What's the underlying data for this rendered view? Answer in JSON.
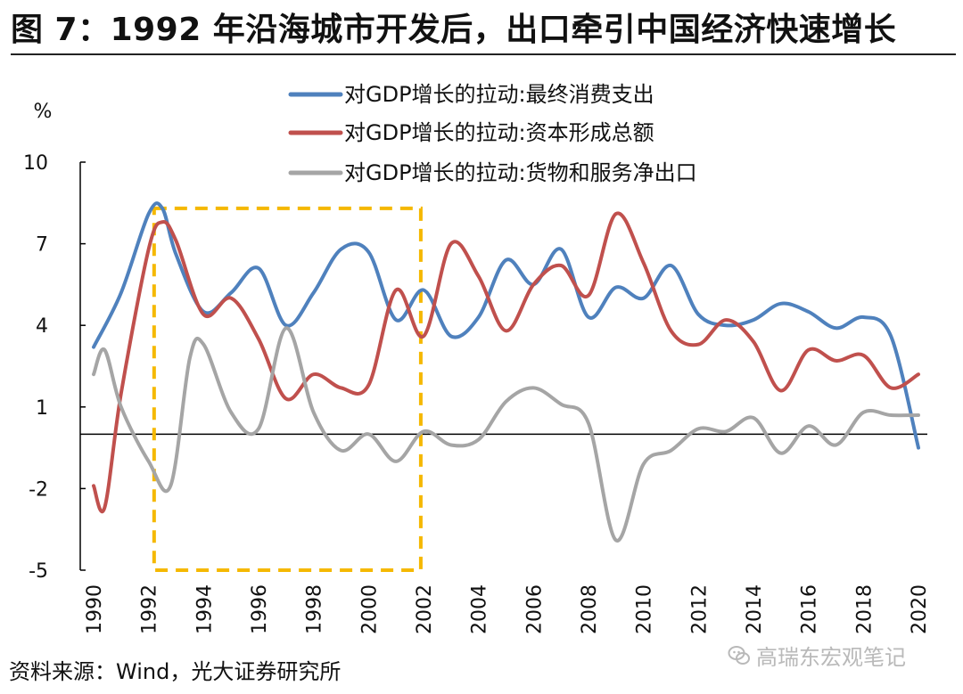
{
  "title": "图 7：1992 年沿海城市开发后，出口牵引中国经济快速增长",
  "source": "资料来源：Wind，光大证券研究所",
  "watermark": "高瑞东宏观笔记",
  "chart_data": {
    "type": "line",
    "ylabel": "%",
    "ylim": [
      -5,
      10
    ],
    "yticks": [
      -5,
      -2,
      1,
      4,
      7,
      10
    ],
    "xlim": [
      1990,
      2020
    ],
    "xticks": [
      1990,
      1992,
      1994,
      1996,
      1998,
      2000,
      2002,
      2004,
      2006,
      2008,
      2010,
      2012,
      2014,
      2016,
      2018,
      2020
    ],
    "grid": false,
    "legend": "top",
    "highlight_box": {
      "x": [
        1992.2,
        2001.9
      ],
      "y": [
        -5,
        8.3
      ],
      "color": "#F5B800"
    },
    "series": [
      {
        "name": "对GDP增长的拉动:最终消费支出",
        "color": "#4F81BD",
        "x": [
          1990,
          1991,
          1992,
          1992.5,
          1993,
          1994,
          1995,
          1996,
          1997,
          1998,
          1999,
          2000,
          2001,
          2002,
          2003,
          2004,
          2005,
          2006,
          2007,
          2008,
          2009,
          2010,
          2011,
          2012,
          2013,
          2014,
          2015,
          2016,
          2017,
          2018,
          2019,
          2020
        ],
        "y": [
          3.2,
          5.2,
          8.1,
          8.3,
          6.6,
          4.5,
          5.2,
          6.1,
          4.0,
          5.2,
          6.8,
          6.7,
          4.2,
          5.3,
          3.6,
          4.3,
          6.4,
          5.5,
          6.8,
          4.3,
          5.4,
          5.0,
          6.2,
          4.4,
          4.0,
          4.2,
          4.8,
          4.5,
          3.9,
          4.3,
          3.6,
          -0.5
        ]
      },
      {
        "name": "对GDP增长的拉动:资本形成总额",
        "color": "#C0504D",
        "x": [
          1990,
          1990.4,
          1991,
          1992,
          1992.5,
          1993,
          1994,
          1995,
          1996,
          1997,
          1998,
          1999,
          2000,
          2001,
          2002,
          2003,
          2004,
          2005,
          2006,
          2007,
          2008,
          2009,
          2010,
          2011,
          2012,
          2013,
          2014,
          2015,
          2016,
          2017,
          2018,
          2019,
          2020
        ],
        "y": [
          -1.9,
          -2.7,
          1.5,
          6.8,
          7.8,
          7.1,
          4.4,
          5.0,
          3.5,
          1.3,
          2.2,
          1.7,
          1.8,
          5.3,
          3.6,
          7.0,
          5.8,
          3.8,
          5.5,
          6.2,
          5.1,
          8.1,
          6.3,
          3.8,
          3.3,
          4.2,
          3.4,
          1.6,
          3.1,
          2.7,
          2.9,
          1.7,
          2.2
        ]
      },
      {
        "name": "对GDP增长的拉动:货物和服务净出口",
        "color": "#A5A5A5",
        "x": [
          1990,
          1990.4,
          1991,
          1992,
          1992.8,
          1993.5,
          1994,
          1995,
          1996,
          1997,
          1998,
          1999,
          2000,
          2001,
          2002,
          2003,
          2004,
          2005,
          2006,
          2007,
          2008,
          2009,
          2010,
          2011,
          2012,
          2013,
          2014,
          2015,
          2016,
          2017,
          2018,
          2019,
          2020
        ],
        "y": [
          2.2,
          3.1,
          1.0,
          -1.0,
          -1.9,
          2.8,
          3.3,
          0.8,
          0.2,
          3.9,
          0.8,
          -0.6,
          0.0,
          -1.0,
          0.1,
          -0.4,
          -0.2,
          1.2,
          1.7,
          1.1,
          0.4,
          -3.9,
          -1.1,
          -0.6,
          0.2,
          0.1,
          0.6,
          -0.7,
          0.3,
          -0.4,
          0.8,
          0.7,
          0.7
        ]
      }
    ]
  }
}
